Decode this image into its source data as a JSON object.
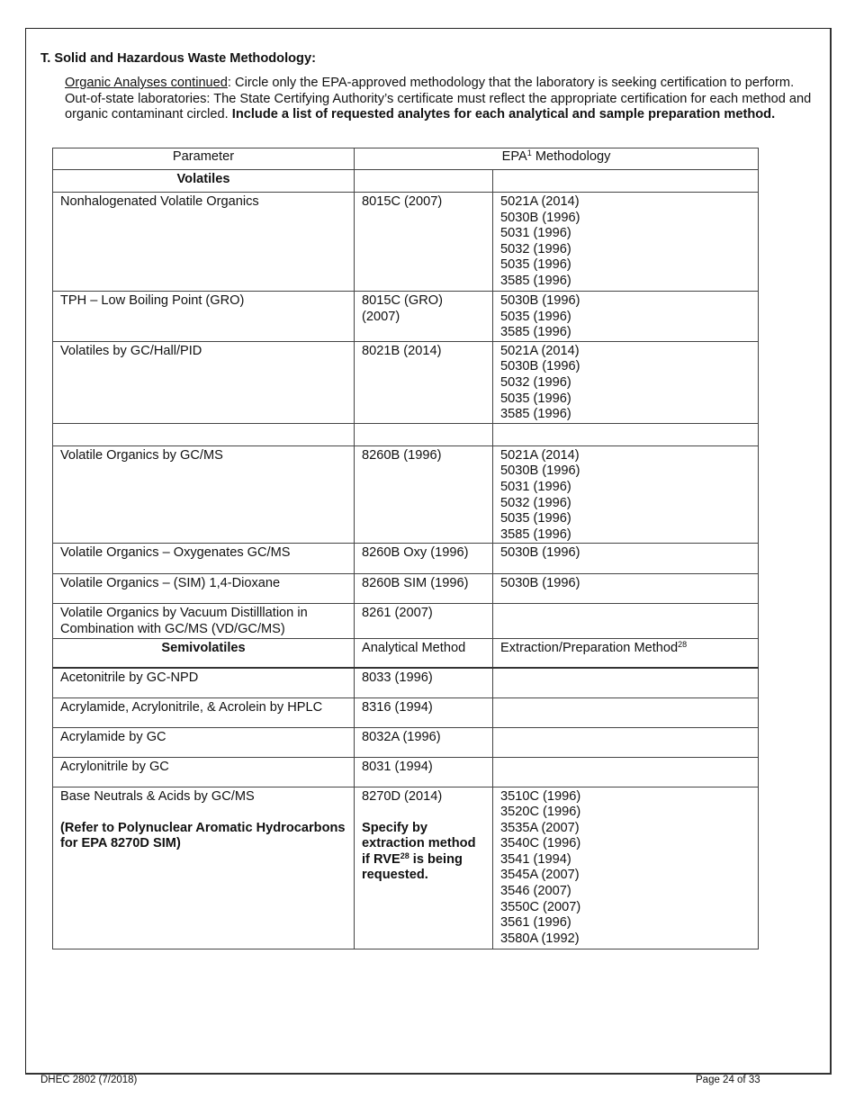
{
  "section_title": "T.  Solid and Hazardous Waste Methodology:",
  "intro": {
    "underlined": "Organic Analyses continued",
    "text": ":  Circle only the EPA-approved methodology that the laboratory is seeking certification to perform.  Out-of-state laboratories:  The State Certifying Authority’s certificate must reflect the appropriate certification for each method and organic contaminant circled.  ",
    "bold": "Include a list of requested analytes for each analytical and sample preparation method."
  },
  "table": {
    "header": {
      "parameter": "Parameter",
      "methodology": "EPA",
      "methodology_sup": "1",
      "methodology_rest": " Methodology"
    },
    "rows": [
      {
        "type": "group",
        "parameter": "Volatiles",
        "method": "",
        "prep": []
      },
      {
        "parameter": "Nonhalogenated Volatile Organics",
        "method": [
          "8015C (2007)"
        ],
        "prep": [
          "5021A (2014)",
          "5030B (1996)",
          "5031 (1996)",
          "5032 (1996)",
          "5035 (1996)",
          "3585 (1996)"
        ]
      },
      {
        "parameter": "TPH – Low Boiling Point (GRO)",
        "method": [
          "8015C (GRO)",
          "(2007)"
        ],
        "prep": [
          "5030B (1996)",
          "5035 (1996)",
          "3585 (1996)"
        ]
      },
      {
        "parameter": "Volatiles by GC/Hall/PID",
        "method": [
          "8021B (2014)"
        ],
        "prep": [
          "5021A (2014)",
          "5030B (1996)",
          "5032 (1996)",
          "5035 (1996)",
          "3585 (1996)"
        ]
      },
      {
        "parameter": "",
        "method": [],
        "prep": []
      },
      {
        "parameter": "Volatile Organics by GC/MS",
        "method": [
          "8260B (1996)"
        ],
        "prep": [
          "5021A (2014)",
          "5030B (1996)",
          "5031 (1996)",
          "5032 (1996)",
          "5035 (1996)",
          "3585 (1996)"
        ]
      },
      {
        "parameter": "Volatile Organics – Oxygenates GC/MS",
        "method": [
          "8260B Oxy (1996)"
        ],
        "prep": [
          "5030B (1996)"
        ]
      },
      {
        "parameter": "Volatile Organics – (SIM) 1,4-Dioxane",
        "method": [
          "8260B SIM (1996)"
        ],
        "prep": [
          "5030B (1996)"
        ]
      },
      {
        "parameter": "Volatile Organics by Vacuum Distilllation in Combination with GC/MS (VD/GC/MS)",
        "method": [
          "8261 (2007)"
        ],
        "prep": []
      },
      {
        "type": "group",
        "parameter": "Semivolatiles",
        "method": "Analytical Method",
        "prep_label": "Extraction/Preparation Method",
        "prep_sup": "28"
      },
      {
        "parameter": "Acetonitrile by GC-NPD",
        "method": [
          "8033 (1996)"
        ],
        "prep": []
      },
      {
        "parameter": "Acrylamide, Acrylonitrile, & Acrolein by HPLC",
        "method": [
          "8316 (1994)"
        ],
        "prep": []
      },
      {
        "parameter": "Acrylamide by GC",
        "method": [
          "8032A (1996)"
        ],
        "prep": []
      },
      {
        "parameter": "Acrylonitrile by GC",
        "method": [
          "8031 (1994)"
        ],
        "prep": []
      },
      {
        "parameter": "Base Neutrals & Acids by GC/MS",
        "parameter_note": "(Refer to Polynuclear Aromatic Hydrocarbons for EPA 8270D SIM)",
        "method": [
          "8270D (2014)"
        ],
        "method_note": {
          "a": "Specify by extraction method if RVE",
          "sup": "28",
          "b": " is being requested."
        },
        "prep": [
          "3510C (1996)",
          "3520C (1996)",
          "3535A (2007)",
          "3540C (1996)",
          "3541 (1994)",
          "3545A (2007)",
          "3546 (2007)",
          "3550C (2007)",
          "3561 (1996)",
          "3580A (1992)"
        ]
      }
    ]
  },
  "footer": {
    "form": "DHEC 2802 (7/2018)",
    "page": "Page 24 of 33"
  }
}
